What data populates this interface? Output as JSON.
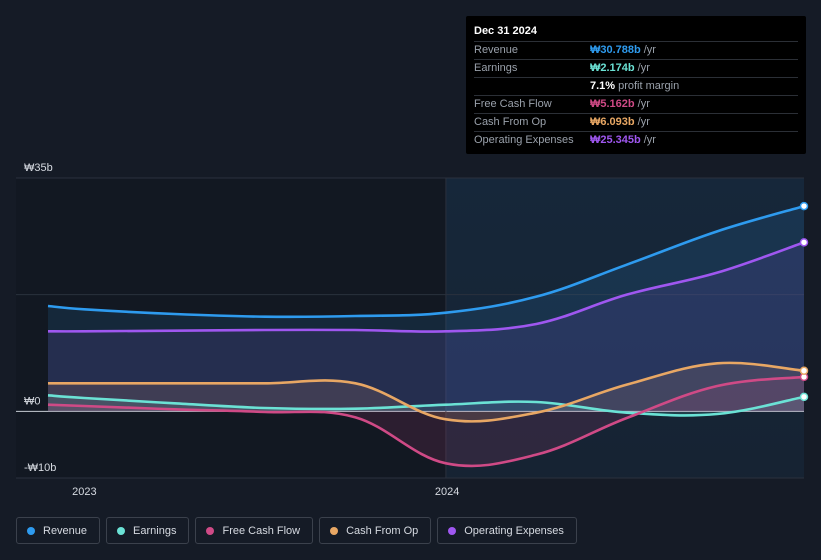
{
  "chart_data": {
    "type": "line",
    "x": [
      2022.9,
      2023.0,
      2023.25,
      2023.5,
      2023.75,
      2024.0,
      2024.25,
      2024.5,
      2024.75,
      2024.99
    ],
    "x_ticks": [
      {
        "value": 2023.0,
        "label": "2023"
      },
      {
        "value": 2024.0,
        "label": "2024"
      }
    ],
    "y_ticks": [
      {
        "value": 35,
        "label": "₩35b"
      },
      {
        "value": 0,
        "label": "₩0"
      },
      {
        "value": -10,
        "label": "-₩10b"
      }
    ],
    "ylim": [
      -10,
      35
    ],
    "xlim": [
      2022.9,
      2024.99
    ],
    "series": [
      {
        "name": "Revenue",
        "color": "#2e9bef",
        "values": [
          15.8,
          15.3,
          14.6,
          14.2,
          14.3,
          14.8,
          17.2,
          22.0,
          27.0,
          30.788
        ]
      },
      {
        "name": "Earnings",
        "color": "#6be2d5",
        "values": [
          2.4,
          2.0,
          1.2,
          0.5,
          0.4,
          1.0,
          1.4,
          -0.2,
          -0.4,
          2.174
        ]
      },
      {
        "name": "Free Cash Flow",
        "color": "#cf4a86",
        "values": [
          1.0,
          0.8,
          0.3,
          -0.1,
          -0.9,
          -7.8,
          -6.5,
          -1.0,
          3.8,
          5.162
        ]
      },
      {
        "name": "Cash From Op",
        "color": "#e8a764",
        "values": [
          4.2,
          4.2,
          4.2,
          4.2,
          4.2,
          -1.2,
          -0.2,
          4.0,
          7.2,
          6.093
        ]
      },
      {
        "name": "Operating Expenses",
        "color": "#9f57f0",
        "values": [
          12.0,
          12.0,
          12.1,
          12.2,
          12.2,
          12.0,
          13.1,
          17.5,
          20.8,
          25.345
        ]
      }
    ]
  },
  "tooltip": {
    "date": "Dec 31 2024",
    "rows": [
      {
        "label": "Revenue",
        "value": "₩30.788b",
        "unit": "/yr",
        "color": "#2e9bef"
      },
      {
        "label": "Earnings",
        "value": "₩2.174b",
        "unit": "/yr",
        "color": "#6be2d5"
      },
      {
        "label": "",
        "value": "7.1%",
        "unit": "profit margin",
        "color": "#ffffff"
      },
      {
        "label": "Free Cash Flow",
        "value": "₩5.162b",
        "unit": "/yr",
        "color": "#cf4a86"
      },
      {
        "label": "Cash From Op",
        "value": "₩6.093b",
        "unit": "/yr",
        "color": "#e8a764"
      },
      {
        "label": "Operating Expenses",
        "value": "₩25.345b",
        "unit": "/yr",
        "color": "#9f57f0"
      }
    ]
  },
  "legend": [
    {
      "label": "Revenue",
      "color": "#2e9bef"
    },
    {
      "label": "Earnings",
      "color": "#6be2d5"
    },
    {
      "label": "Free Cash Flow",
      "color": "#cf4a86"
    },
    {
      "label": "Cash From Op",
      "color": "#e8a764"
    },
    {
      "label": "Operating Expenses",
      "color": "#9f57f0"
    }
  ]
}
